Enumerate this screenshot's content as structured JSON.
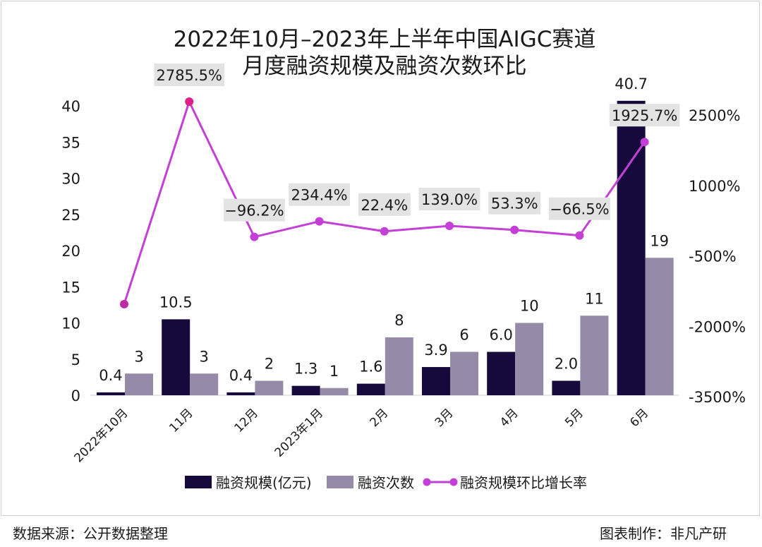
{
  "chart_data": {
    "type": "bar+line",
    "title_lines": [
      "2022年10月–2023年上半年中国AIGC赛道",
      "月度融资规模及融资次数环比"
    ],
    "categories": [
      "2022年10月",
      "11月",
      "12月",
      "2023年1月",
      "2月",
      "3月",
      "4月",
      "5月",
      "6月"
    ],
    "series": [
      {
        "name": "融资规模(亿元)",
        "type": "bar",
        "axis": "left",
        "values": [
          0.4,
          10.5,
          0.4,
          1.3,
          1.6,
          3.9,
          6.0,
          2.0,
          40.7
        ],
        "labels": [
          "0.4",
          "10.5",
          "0.4",
          "1.3",
          "1.6",
          "3.9",
          "6.0",
          "2.0",
          "40.7"
        ],
        "color": "#160a3c"
      },
      {
        "name": "融资次数",
        "type": "bar",
        "axis": "left",
        "values": [
          3,
          3,
          2,
          1,
          8,
          6,
          10,
          11,
          19
        ],
        "labels": [
          "3",
          "3",
          "2",
          "1",
          "8",
          "6",
          "10",
          "11",
          "19"
        ],
        "color": "#958aa8"
      },
      {
        "name": "融资规模环比增长率",
        "type": "line",
        "axis": "right",
        "values": [
          null,
          2785.5,
          -96.2,
          234.4,
          22.4,
          139.0,
          53.3,
          -66.5,
          1925.7
        ],
        "labels": [
          "",
          "2785.5%",
          "−96.2%",
          "234.4%",
          "22.4%",
          "139.0%",
          "53.3%",
          "−66.5%",
          "1925.7%"
        ],
        "color": "#c43fd6",
        "first_point_color": "#c02aa8",
        "peak_point_color": "#e0208a"
      }
    ],
    "y_left": {
      "min": 0,
      "max": 40,
      "ticks": [
        "0",
        "5",
        "10",
        "15",
        "20",
        "25",
        "30",
        "35",
        "40"
      ]
    },
    "y_right": {
      "min": -3500,
      "max": 2500,
      "ticks": [
        "-3500%",
        "-2000%",
        "-500%",
        "1000%",
        "2500%"
      ]
    },
    "grid": false,
    "legend_position": "bottom"
  },
  "footer": {
    "source": "数据来源：公开数据整理",
    "credit": "图表制作：非凡产研"
  }
}
